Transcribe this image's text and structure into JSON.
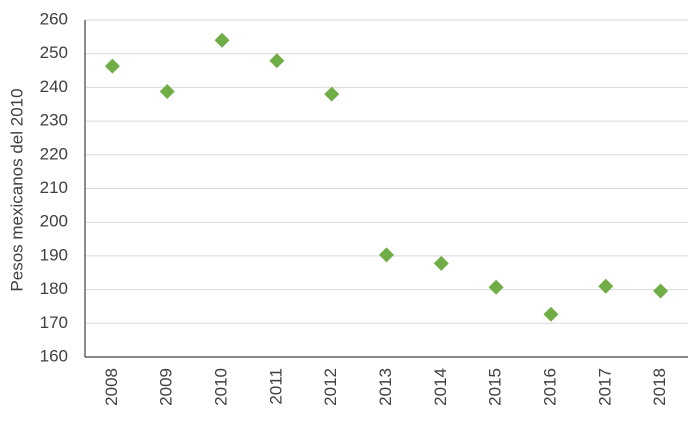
{
  "chart_data": {
    "type": "scatter",
    "y_label": "Pesos mexicanos del 2010",
    "categories": [
      "2008",
      "2009",
      "2010",
      "2011",
      "2012",
      "2013",
      "2014",
      "2015",
      "2016",
      "2017",
      "2018"
    ],
    "values": [
      246.3,
      238.8,
      254,
      247.9,
      238,
      190.3,
      187.8,
      180.7,
      172.7,
      181,
      179.6
    ],
    "color": "#70ad47",
    "ylim": [
      160,
      260
    ],
    "yticks": [
      160,
      170,
      180,
      190,
      200,
      210,
      220,
      230,
      240,
      250,
      260
    ],
    "grid": true
  }
}
